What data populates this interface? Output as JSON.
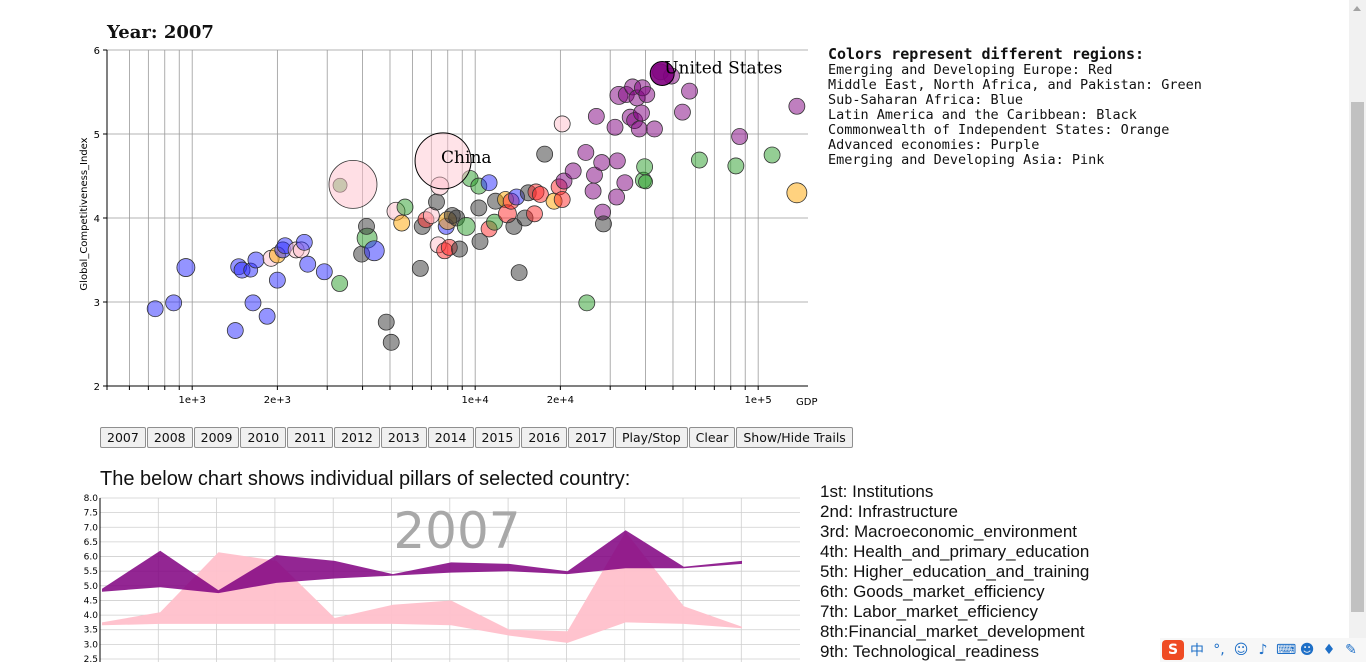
{
  "header": {
    "year_label": "Year:",
    "year_value": "2007"
  },
  "legend": {
    "title": "Colors represent different regions:",
    "items": [
      "Emerging and Developing Europe: Red",
      "Middle East, North Africa, and Pakistan: Green",
      "Sub-Saharan Africa: Blue",
      "Latin America and the Caribbean: Black",
      "Commonwealth of Independent States: Orange",
      "Advanced economies: Purple",
      "Emerging and Developing Asia: Pink"
    ]
  },
  "controls": {
    "years": [
      "2007",
      "2008",
      "2009",
      "2010",
      "2011",
      "2012",
      "2013",
      "2014",
      "2015",
      "2016",
      "2017"
    ],
    "play_label": "Play/Stop",
    "clear_label": "Clear",
    "trails_label": "Show/Hide Trails"
  },
  "pillars_section": {
    "title": "The below chart shows individual pillars of selected country:",
    "pillar_labels": [
      "1st: Institutions",
      "2nd: Infrastructure",
      "3rd: Macroeconomic_environment",
      "4th: Health_and_primary_education",
      "5th: Higher_education_and_training",
      "6th: Goods_market_efficiency",
      "7th: Labor_market_efficiency",
      "8th:Financial_market_development",
      "9th: Technological_readiness"
    ]
  },
  "region_colors": {
    "red": "#ff2a2a",
    "green": "#2a9d2a",
    "blue": "#2a2aff",
    "black": "#333333",
    "orange": "#ffa500",
    "purple": "#800080",
    "pink": "#ffc0cb"
  },
  "tray_icons": [
    "sogou-logo-icon",
    "chinese-input-icon",
    "punctuation-icon",
    "emoji-icon",
    "microphone-icon",
    "keyboard-icon",
    "user-icon",
    "shirt-icon",
    "wrench-icon"
  ],
  "tray": {
    "logo_glyph": "S",
    "ime_char": "中"
  },
  "chart_data": [
    {
      "type": "scatter",
      "xlabel": "GDP",
      "ylabel": "Global_Competitiveness_Index",
      "x_scale": "log",
      "xlim": [
        500,
        150000
      ],
      "ylim": [
        2,
        6
      ],
      "x_ticks": [
        {
          "value": 1000,
          "label": "1e+3"
        },
        {
          "value": 2000,
          "label": "2e+3"
        },
        {
          "value": 10000,
          "label": "1e+4"
        },
        {
          "value": 20000,
          "label": "2e+4"
        },
        {
          "value": 100000,
          "label": "1e+5"
        }
      ],
      "y_ticks": [
        2,
        3,
        4,
        5,
        6
      ],
      "grid": true,
      "highlight": [
        {
          "label": "United States",
          "x": 45800,
          "y": 5.72,
          "r": 12,
          "color": "purple",
          "opacity": 0.9
        },
        {
          "label": "China",
          "x": 7700,
          "y": 4.68,
          "r": 28,
          "color": "pink",
          "opacity": 0.45
        }
      ],
      "points": [
        {
          "x": 740,
          "y": 2.92,
          "c": "blue",
          "r": 8
        },
        {
          "x": 860,
          "y": 2.99,
          "c": "blue",
          "r": 8
        },
        {
          "x": 950,
          "y": 3.41,
          "c": "blue",
          "r": 9
        },
        {
          "x": 1420,
          "y": 2.66,
          "c": "blue",
          "r": 8
        },
        {
          "x": 1460,
          "y": 3.42,
          "c": "blue",
          "r": 8
        },
        {
          "x": 1500,
          "y": 3.38,
          "c": "blue",
          "r": 8
        },
        {
          "x": 1610,
          "y": 3.38,
          "c": "blue",
          "r": 7
        },
        {
          "x": 1640,
          "y": 2.99,
          "c": "blue",
          "r": 8
        },
        {
          "x": 1680,
          "y": 3.5,
          "c": "blue",
          "r": 8
        },
        {
          "x": 1840,
          "y": 2.83,
          "c": "blue",
          "r": 8
        },
        {
          "x": 1900,
          "y": 3.52,
          "c": "pink",
          "r": 8
        },
        {
          "x": 2000,
          "y": 3.26,
          "c": "blue",
          "r": 8
        },
        {
          "x": 2000,
          "y": 3.56,
          "c": "orange",
          "r": 8
        },
        {
          "x": 2090,
          "y": 3.62,
          "c": "blue",
          "r": 8
        },
        {
          "x": 2130,
          "y": 3.67,
          "c": "blue",
          "r": 8
        },
        {
          "x": 2330,
          "y": 3.62,
          "c": "pink",
          "r": 8
        },
        {
          "x": 2430,
          "y": 3.62,
          "c": "pink",
          "r": 8
        },
        {
          "x": 2490,
          "y": 3.71,
          "c": "blue",
          "r": 8
        },
        {
          "x": 2560,
          "y": 3.45,
          "c": "blue",
          "r": 8
        },
        {
          "x": 2930,
          "y": 3.36,
          "c": "blue",
          "r": 8
        },
        {
          "x": 3320,
          "y": 3.22,
          "c": "green",
          "r": 8
        },
        {
          "x": 3330,
          "y": 4.39,
          "c": "green",
          "r": 7
        },
        {
          "x": 3700,
          "y": 4.4,
          "c": "pink",
          "r": 24
        },
        {
          "x": 3970,
          "y": 3.57,
          "c": "black",
          "r": 8
        },
        {
          "x": 4150,
          "y": 3.76,
          "c": "green",
          "r": 10
        },
        {
          "x": 4130,
          "y": 3.9,
          "c": "black",
          "r": 8
        },
        {
          "x": 4400,
          "y": 3.61,
          "c": "blue",
          "r": 10
        },
        {
          "x": 4850,
          "y": 2.76,
          "c": "black",
          "r": 8
        },
        {
          "x": 5050,
          "y": 2.52,
          "c": "black",
          "r": 8
        },
        {
          "x": 5250,
          "y": 4.08,
          "c": "pink",
          "r": 9
        },
        {
          "x": 5500,
          "y": 3.94,
          "c": "orange",
          "r": 8
        },
        {
          "x": 5650,
          "y": 4.13,
          "c": "green",
          "r": 8
        },
        {
          "x": 6400,
          "y": 3.4,
          "c": "black",
          "r": 8
        },
        {
          "x": 6500,
          "y": 3.9,
          "c": "black",
          "r": 8
        },
        {
          "x": 6700,
          "y": 3.98,
          "c": "red",
          "r": 8
        },
        {
          "x": 7000,
          "y": 4.03,
          "c": "pink",
          "r": 8
        },
        {
          "x": 7300,
          "y": 4.19,
          "c": "black",
          "r": 8
        },
        {
          "x": 7500,
          "y": 4.38,
          "c": "pink",
          "r": 9
        },
        {
          "x": 7400,
          "y": 3.68,
          "c": "pink",
          "r": 8
        },
        {
          "x": 7800,
          "y": 3.61,
          "c": "red",
          "r": 8
        },
        {
          "x": 7900,
          "y": 3.9,
          "c": "blue",
          "r": 8
        },
        {
          "x": 8000,
          "y": 3.97,
          "c": "orange",
          "r": 9
        },
        {
          "x": 8100,
          "y": 3.65,
          "c": "red",
          "r": 8
        },
        {
          "x": 8300,
          "y": 4.03,
          "c": "black",
          "r": 8
        },
        {
          "x": 8600,
          "y": 4.0,
          "c": "black",
          "r": 8
        },
        {
          "x": 8800,
          "y": 3.63,
          "c": "black",
          "r": 8
        },
        {
          "x": 9300,
          "y": 3.9,
          "c": "green",
          "r": 9
        },
        {
          "x": 9600,
          "y": 4.47,
          "c": "green",
          "r": 8
        },
        {
          "x": 10300,
          "y": 4.38,
          "c": "green",
          "r": 8
        },
        {
          "x": 10400,
          "y": 3.72,
          "c": "black",
          "r": 8
        },
        {
          "x": 10300,
          "y": 4.12,
          "c": "black",
          "r": 8
        },
        {
          "x": 11200,
          "y": 4.42,
          "c": "blue",
          "r": 8
        },
        {
          "x": 11200,
          "y": 3.87,
          "c": "red",
          "r": 8
        },
        {
          "x": 11800,
          "y": 4.2,
          "c": "black",
          "r": 8
        },
        {
          "x": 11700,
          "y": 3.95,
          "c": "green",
          "r": 8
        },
        {
          "x": 12800,
          "y": 4.22,
          "c": "orange",
          "r": 8
        },
        {
          "x": 13000,
          "y": 4.05,
          "c": "red",
          "r": 9
        },
        {
          "x": 13400,
          "y": 4.2,
          "c": "red",
          "r": 8
        },
        {
          "x": 13700,
          "y": 3.9,
          "c": "black",
          "r": 8
        },
        {
          "x": 14000,
          "y": 4.25,
          "c": "blue",
          "r": 8
        },
        {
          "x": 14300,
          "y": 3.35,
          "c": "black",
          "r": 8
        },
        {
          "x": 15000,
          "y": 4.0,
          "c": "black",
          "r": 8
        },
        {
          "x": 15400,
          "y": 4.3,
          "c": "black",
          "r": 8
        },
        {
          "x": 16200,
          "y": 4.05,
          "c": "red",
          "r": 8
        },
        {
          "x": 16400,
          "y": 4.31,
          "c": "red",
          "r": 8
        },
        {
          "x": 17000,
          "y": 4.28,
          "c": "red",
          "r": 8
        },
        {
          "x": 17600,
          "y": 4.76,
          "c": "black",
          "r": 8
        },
        {
          "x": 19000,
          "y": 4.2,
          "c": "orange",
          "r": 8
        },
        {
          "x": 19800,
          "y": 4.37,
          "c": "red",
          "r": 8
        },
        {
          "x": 20300,
          "y": 4.22,
          "c": "red",
          "r": 8
        },
        {
          "x": 20600,
          "y": 4.44,
          "c": "purple",
          "r": 8
        },
        {
          "x": 20300,
          "y": 5.12,
          "c": "pink",
          "r": 8
        },
        {
          "x": 22200,
          "y": 4.56,
          "c": "purple",
          "r": 8
        },
        {
          "x": 24600,
          "y": 4.78,
          "c": "purple",
          "r": 8
        },
        {
          "x": 24800,
          "y": 2.99,
          "c": "green",
          "r": 8
        },
        {
          "x": 26100,
          "y": 4.32,
          "c": "purple",
          "r": 8
        },
        {
          "x": 26400,
          "y": 4.51,
          "c": "purple",
          "r": 8
        },
        {
          "x": 26800,
          "y": 5.21,
          "c": "purple",
          "r": 8
        },
        {
          "x": 28000,
          "y": 4.66,
          "c": "purple",
          "r": 8
        },
        {
          "x": 28200,
          "y": 4.07,
          "c": "purple",
          "r": 8
        },
        {
          "x": 28400,
          "y": 3.93,
          "c": "black",
          "r": 8
        },
        {
          "x": 31200,
          "y": 5.08,
          "c": "purple",
          "r": 8
        },
        {
          "x": 31600,
          "y": 4.25,
          "c": "purple",
          "r": 8
        },
        {
          "x": 31800,
          "y": 4.68,
          "c": "purple",
          "r": 8
        },
        {
          "x": 32200,
          "y": 5.46,
          "c": "purple",
          "r": 9
        },
        {
          "x": 33800,
          "y": 4.42,
          "c": "purple",
          "r": 8
        },
        {
          "x": 34200,
          "y": 5.47,
          "c": "purple",
          "r": 8
        },
        {
          "x": 35300,
          "y": 5.2,
          "c": "purple",
          "r": 8
        },
        {
          "x": 36000,
          "y": 5.56,
          "c": "purple",
          "r": 8
        },
        {
          "x": 36600,
          "y": 5.16,
          "c": "purple",
          "r": 8
        },
        {
          "x": 37300,
          "y": 5.43,
          "c": "purple",
          "r": 8
        },
        {
          "x": 38000,
          "y": 5.06,
          "c": "purple",
          "r": 8
        },
        {
          "x": 38700,
          "y": 5.25,
          "c": "purple",
          "r": 8
        },
        {
          "x": 39000,
          "y": 5.55,
          "c": "purple",
          "r": 8
        },
        {
          "x": 39300,
          "y": 4.45,
          "c": "green",
          "r": 8
        },
        {
          "x": 39700,
          "y": 4.61,
          "c": "green",
          "r": 8
        },
        {
          "x": 40000,
          "y": 4.43,
          "c": "green",
          "r": 7
        },
        {
          "x": 40400,
          "y": 5.47,
          "c": "purple",
          "r": 8
        },
        {
          "x": 43000,
          "y": 5.06,
          "c": "purple",
          "r": 8
        },
        {
          "x": 45200,
          "y": 5.74,
          "c": "purple",
          "r": 8
        },
        {
          "x": 49400,
          "y": 5.69,
          "c": "purple",
          "r": 8
        },
        {
          "x": 54000,
          "y": 5.26,
          "c": "purple",
          "r": 8
        },
        {
          "x": 57200,
          "y": 5.51,
          "c": "purple",
          "r": 8
        },
        {
          "x": 62000,
          "y": 4.69,
          "c": "green",
          "r": 8
        },
        {
          "x": 83400,
          "y": 4.62,
          "c": "green",
          "r": 8
        },
        {
          "x": 86000,
          "y": 4.97,
          "c": "purple",
          "r": 8
        },
        {
          "x": 112000,
          "y": 4.75,
          "c": "green",
          "r": 8
        },
        {
          "x": 137000,
          "y": 5.33,
          "c": "purple",
          "r": 8
        },
        {
          "x": 137000,
          "y": 4.3,
          "c": "orange",
          "r": 10
        }
      ]
    },
    {
      "type": "area",
      "watermark": "2007",
      "ylim": [
        2.5,
        8.0
      ],
      "y_ticks": [
        2.5,
        3.0,
        3.5,
        4.0,
        4.5,
        5.0,
        5.5,
        6.0,
        6.5,
        7.0,
        7.5,
        8.0
      ],
      "grid": true,
      "series": [
        {
          "color": "purple",
          "upper": [
            4.9,
            6.2,
            4.85,
            6.05,
            5.85,
            5.4,
            5.8,
            5.75,
            5.5,
            6.9,
            5.65,
            5.85
          ],
          "lower": [
            4.8,
            4.95,
            4.75,
            5.1,
            5.25,
            5.35,
            5.45,
            5.5,
            5.4,
            5.6,
            5.6,
            5.75
          ]
        },
        {
          "color": "pink",
          "upper": [
            3.75,
            4.1,
            6.15,
            5.85,
            3.9,
            4.35,
            4.5,
            3.5,
            3.45,
            6.85,
            4.3,
            3.6
          ],
          "lower": [
            3.65,
            3.7,
            3.7,
            3.7,
            3.7,
            3.7,
            3.65,
            3.3,
            3.05,
            3.75,
            3.7,
            3.55
          ]
        }
      ]
    }
  ]
}
